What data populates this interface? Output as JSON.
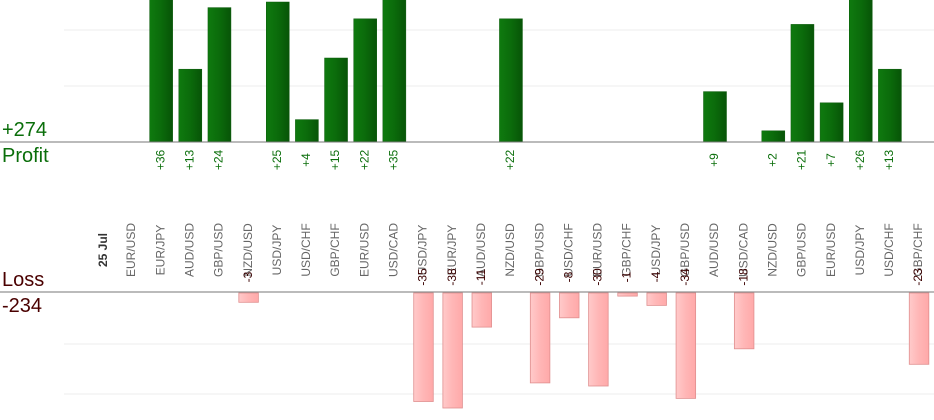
{
  "profit": {
    "total_label": "+274",
    "caption": "Profit"
  },
  "loss": {
    "total_label": "-234",
    "caption": "Loss"
  },
  "colors": {
    "profit_bar": "#0b6b0b",
    "profit_bar_edge": "#0a5a0a",
    "profit_text": "#0a6e0a",
    "loss_bar": "#ffb8b8",
    "loss_bar_edge": "#e08f8f",
    "loss_text": "#3a0000",
    "axis_label": "#666666",
    "grid": "#eeeeee",
    "baseline": "#777777"
  },
  "chart_data": {
    "type": "bar",
    "title": "",
    "date_label": "25 Jul",
    "categories": [
      "EUR/USD",
      "EUR/JPY",
      "AUD/USD",
      "GBP/USD",
      "NZD/USD",
      "USD/JPY",
      "USD/CHF",
      "GBP/CHF",
      "EUR/USD",
      "USD/CAD",
      "USD/JPY",
      "EUR/JPY",
      "AUD/USD",
      "NZD/USD",
      "GBP/USD",
      "USD/CHF",
      "EUR/USD",
      "GBP/CHF",
      "USD/JPY",
      "GBP/USD",
      "AUD/USD",
      "USD/CAD",
      "NZD/USD",
      "GBP/USD",
      "EUR/USD",
      "USD/JPY",
      "USD/CHF",
      "GBP/CHF"
    ],
    "series": [
      {
        "values": [
          null,
          36,
          13,
          24,
          null,
          25,
          4,
          15,
          22,
          35,
          null,
          null,
          null,
          22,
          null,
          null,
          null,
          null,
          null,
          null,
          9,
          null,
          2,
          21,
          7,
          26,
          13,
          null
        ],
        "labels": [
          "",
          "+36",
          "+13",
          "+24",
          "",
          "+25",
          "+4",
          "+15",
          "+22",
          "+35",
          "",
          "",
          "",
          "+22",
          "",
          "",
          "",
          "",
          "",
          "",
          "+9",
          "",
          "+2",
          "+21",
          "+7",
          "+26",
          "+13",
          ""
        ]
      },
      {
        "values": [
          null,
          null,
          null,
          null,
          -3,
          null,
          null,
          null,
          null,
          null,
          -35,
          -38,
          -11,
          null,
          -29,
          -8,
          -30,
          -1,
          -4,
          -34,
          null,
          -18,
          null,
          null,
          null,
          null,
          null,
          -23
        ],
        "labels": [
          "",
          "",
          "",
          "",
          "-3",
          "",
          "",
          "",
          "",
          "",
          "-35",
          "-38",
          "-11",
          "",
          "-29",
          "-8",
          "-30",
          "-1",
          "-4",
          "-34",
          "",
          "-18",
          "",
          "",
          "",
          "",
          "",
          "-23"
        ]
      }
    ],
    "grid": true
  }
}
